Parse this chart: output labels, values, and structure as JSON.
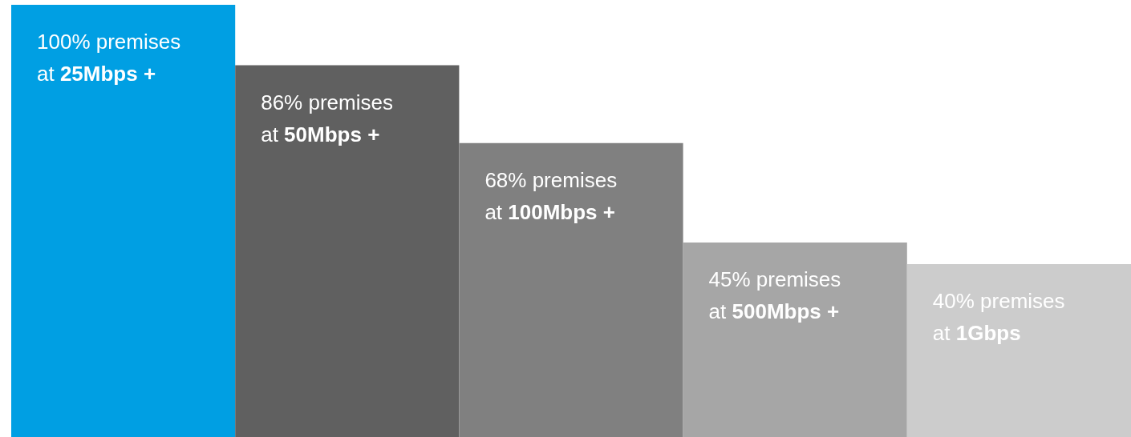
{
  "chart_data": {
    "type": "bar",
    "categories": [
      "25Mbps +",
      "50Mbps +",
      "100Mbps +",
      "500Mbps +",
      "1Gbps"
    ],
    "values": [
      100,
      86,
      68,
      45,
      40
    ],
    "colors": [
      "#009fe3",
      "#606060",
      "#808080",
      "#a6a6a6",
      "#cccccc"
    ],
    "value_labels": [
      "100% premises at",
      "86% premises at",
      "68% premises at",
      "45% premises at",
      "40% premises at"
    ]
  }
}
